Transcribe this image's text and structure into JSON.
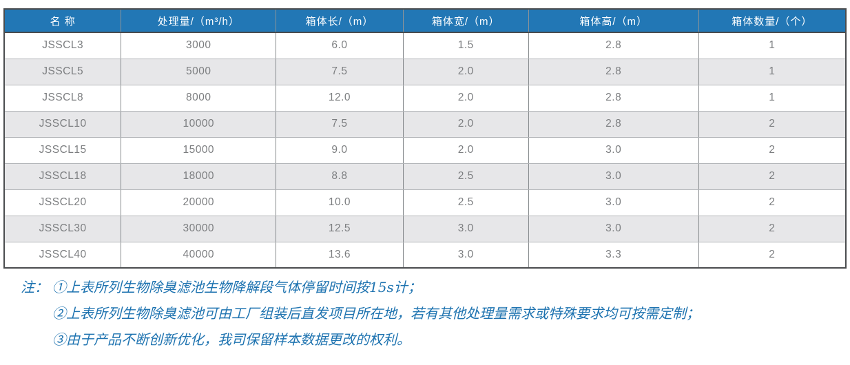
{
  "table": {
    "headers": [
      "名 称",
      "处理量/（m³/h）",
      "箱体长/（m）",
      "箱体宽/（m）",
      "箱体高/（m）",
      "箱体数量/（个）"
    ],
    "rows": [
      [
        "JSSCL3",
        "3000",
        "6.0",
        "1.5",
        "2.8",
        "1"
      ],
      [
        "JSSCL5",
        "5000",
        "7.5",
        "2.0",
        "2.8",
        "1"
      ],
      [
        "JSSCL8",
        "8000",
        "12.0",
        "2.0",
        "2.8",
        "1"
      ],
      [
        "JSSCL10",
        "10000",
        "7.5",
        "2.0",
        "2.8",
        "2"
      ],
      [
        "JSSCL15",
        "15000",
        "9.0",
        "2.0",
        "3.0",
        "2"
      ],
      [
        "JSSCL18",
        "18000",
        "8.8",
        "2.5",
        "3.0",
        "2"
      ],
      [
        "JSSCL20",
        "20000",
        "10.0",
        "2.5",
        "3.0",
        "2"
      ],
      [
        "JSSCL30",
        "30000",
        "12.5",
        "3.0",
        "3.0",
        "2"
      ],
      [
        "JSSCL40",
        "40000",
        "13.6",
        "3.0",
        "3.3",
        "2"
      ]
    ],
    "column_widths_pct": [
      13.9,
      18.4,
      15.1,
      14.9,
      20.2,
      17.5
    ]
  },
  "notes": {
    "prefix": "注：",
    "items": [
      "①上表所列生物除臭滤池生物降解段气体停留时间按15s计；",
      "②上表所列生物除臭滤池可由工厂组装后直发项目所在地，若有其他处理量需求或特殊要求均可按需定制；",
      "③由于产品不断创新优化，我司保留样本数据更改的权利。"
    ]
  },
  "colors": {
    "header_bg": "#2277b5",
    "header_text": "#ffffff",
    "row_alt_bg": "#e7e7e9",
    "cell_text": "#7c7e80",
    "outer_border": "#4a4c4e",
    "note_text": "#1e73b0"
  }
}
